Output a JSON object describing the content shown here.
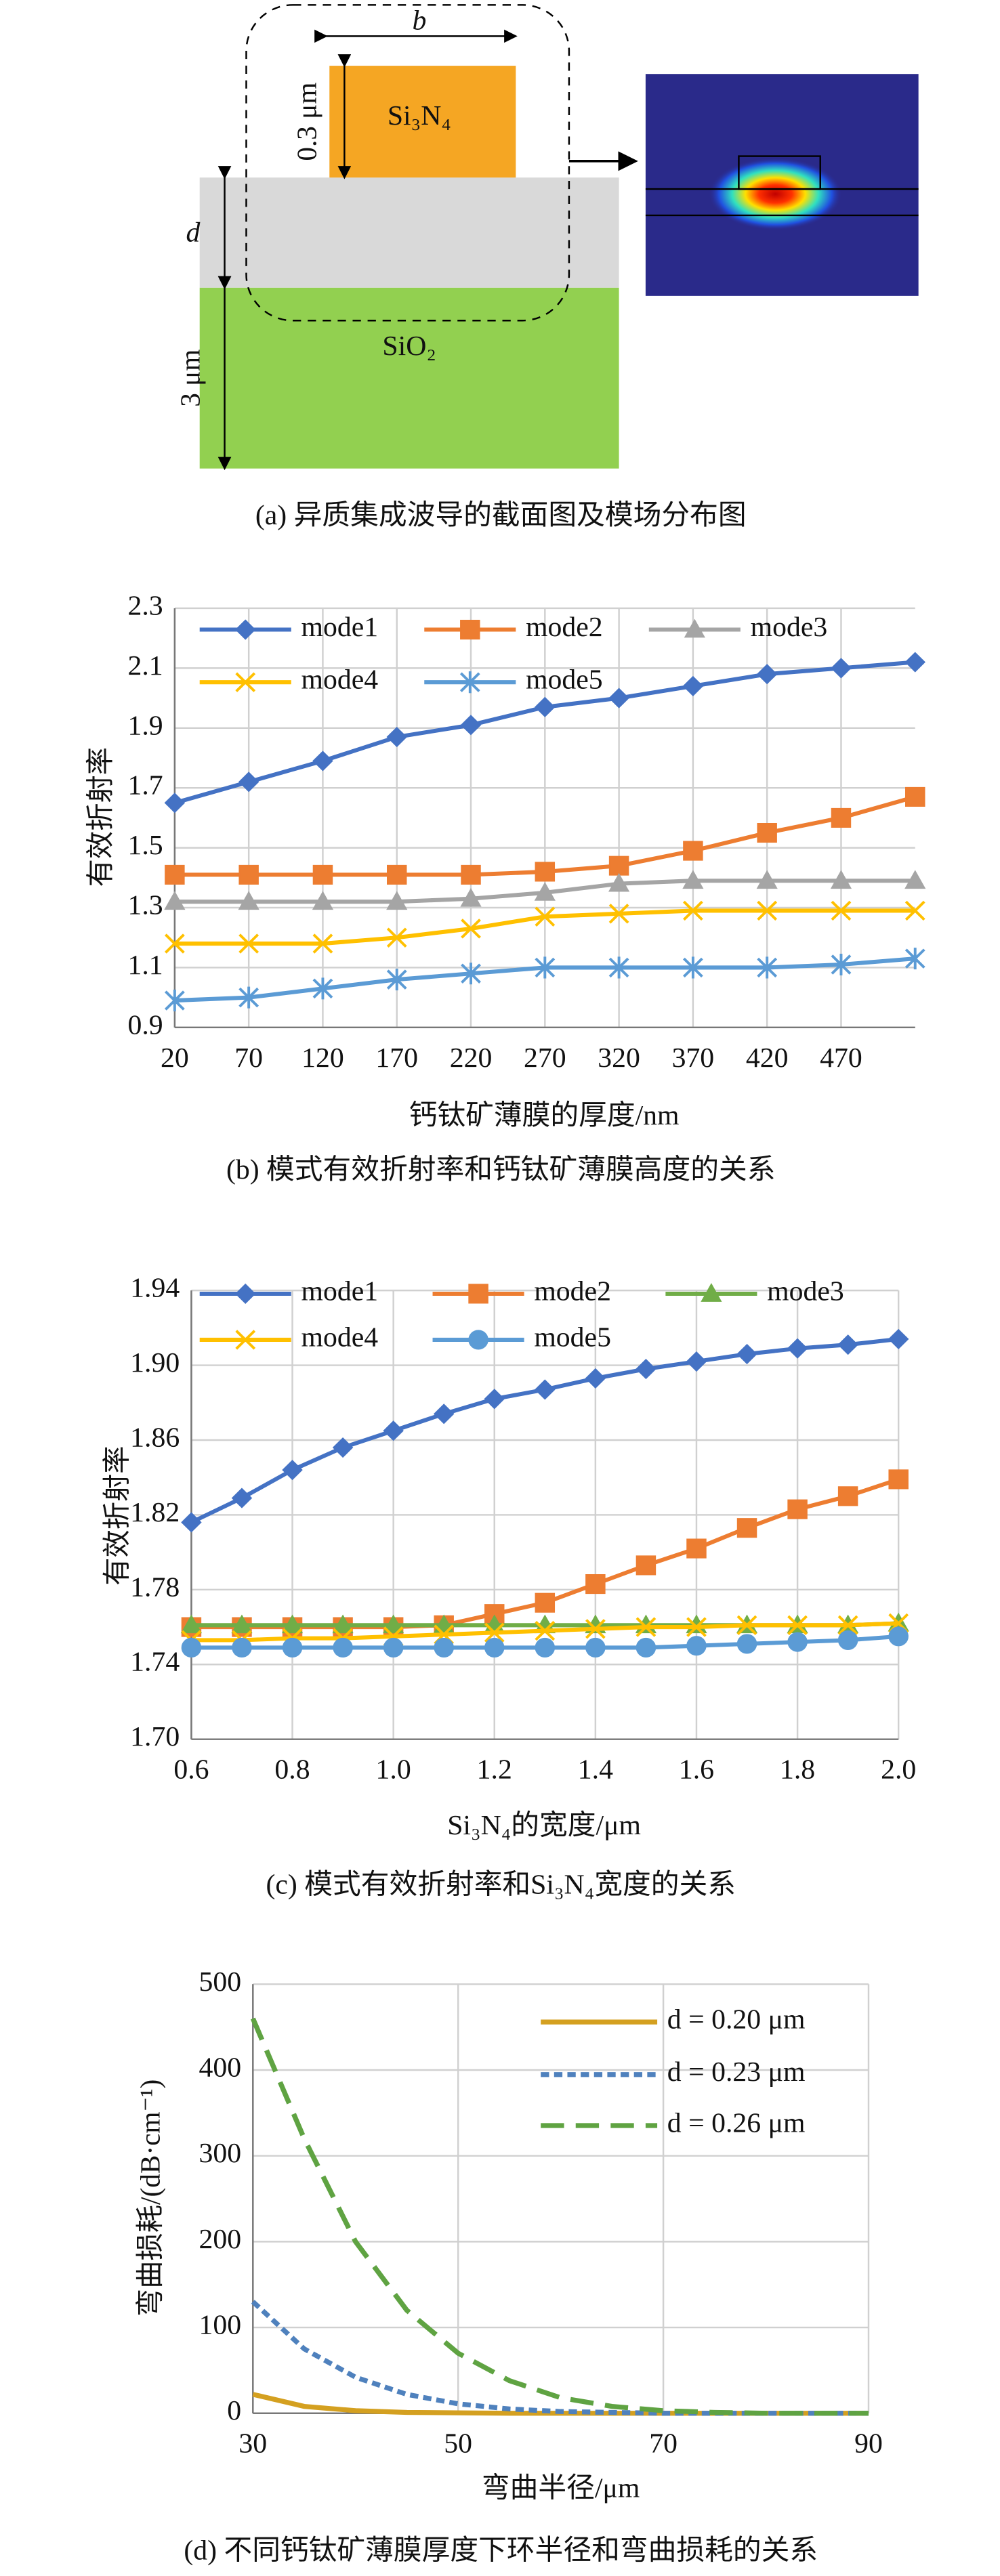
{
  "diagram": {
    "width_label": "b",
    "height_label": "0.3 μm",
    "core_label": "Si₃N₄",
    "film_label": "d",
    "substrate_height_label": "3 μm",
    "substrate_label": "SiO₂",
    "caption": "(a) 异质集成波导的截面图及模场分布图"
  },
  "chart_data": [
    {
      "type": "line",
      "caption": "(b) 模式有效折射率和钙钛矿薄膜高度的关系",
      "xlabel": "钙钛矿薄膜的厚度/nm",
      "ylabel": "有效折射率",
      "x": [
        20,
        70,
        120,
        170,
        220,
        270,
        320,
        370,
        420,
        470,
        520
      ],
      "xlim": [
        20,
        520
      ],
      "xticks": [
        20,
        70,
        120,
        170,
        220,
        270,
        320,
        370,
        420,
        470
      ],
      "ylim": [
        0.9,
        2.3
      ],
      "yticks": [
        0.9,
        1.1,
        1.3,
        1.5,
        1.7,
        1.9,
        2.1,
        2.3
      ],
      "grid": true,
      "series": [
        {
          "name": "mode1",
          "color": "#4472c4",
          "marker": "diamond",
          "values": [
            1.65,
            1.72,
            1.79,
            1.87,
            1.91,
            1.97,
            2.0,
            2.04,
            2.08,
            2.1,
            2.12
          ]
        },
        {
          "name": "mode2",
          "color": "#ed7d31",
          "marker": "square",
          "values": [
            1.41,
            1.41,
            1.41,
            1.41,
            1.41,
            1.42,
            1.44,
            1.49,
            1.55,
            1.6,
            1.67
          ]
        },
        {
          "name": "mode3",
          "color": "#a5a5a5",
          "marker": "triangle",
          "values": [
            1.32,
            1.32,
            1.32,
            1.32,
            1.33,
            1.35,
            1.38,
            1.39,
            1.39,
            1.39,
            1.39
          ]
        },
        {
          "name": "mode4",
          "color": "#ffc000",
          "marker": "x",
          "values": [
            1.18,
            1.18,
            1.18,
            1.2,
            1.23,
            1.27,
            1.28,
            1.29,
            1.29,
            1.29,
            1.29
          ]
        },
        {
          "name": "mode5",
          "color": "#5b9bd5",
          "marker": "star",
          "values": [
            0.99,
            1.0,
            1.03,
            1.06,
            1.08,
            1.1,
            1.1,
            1.1,
            1.1,
            1.11,
            1.13
          ]
        }
      ]
    },
    {
      "type": "line",
      "caption": "(c) 模式有效折射率和Si₃N₄宽度的关系",
      "xlabel": "Si₃N₄的宽度/μm",
      "ylabel": "有效折射率",
      "x": [
        0.6,
        0.7,
        0.8,
        0.9,
        1.0,
        1.1,
        1.2,
        1.3,
        1.4,
        1.5,
        1.6,
        1.7,
        1.8,
        1.9,
        2.0
      ],
      "xlim": [
        0.6,
        2.0
      ],
      "xticks": [
        0.6,
        0.8,
        {
          "value": 1,
          "label": "1.0"
        },
        1.2,
        1.4,
        1.6,
        1.8,
        {
          "value": 2,
          "label": "2.0"
        }
      ],
      "ylim": [
        1.7,
        1.94
      ],
      "yticks": [
        {
          "value": 1.7,
          "label": "1.70"
        },
        1.74,
        1.78,
        1.82,
        1.86,
        {
          "value": 1.9,
          "label": "1.90"
        },
        1.94
      ],
      "grid": true,
      "series": [
        {
          "name": "mode1",
          "color": "#4472c4",
          "marker": "diamond",
          "values": [
            1.816,
            1.829,
            1.844,
            1.856,
            1.865,
            1.874,
            1.882,
            1.887,
            1.893,
            1.898,
            1.902,
            1.906,
            1.909,
            1.911,
            1.914
          ]
        },
        {
          "name": "mode2",
          "color": "#ed7d31",
          "marker": "square",
          "values": [
            1.76,
            1.76,
            1.76,
            1.76,
            1.76,
            1.761,
            1.767,
            1.773,
            1.783,
            1.793,
            1.802,
            1.813,
            1.823,
            1.83,
            1.839
          ]
        },
        {
          "name": "mode3",
          "color": "#70ad47",
          "marker": "triangle",
          "values": [
            1.761,
            1.761,
            1.761,
            1.761,
            1.761,
            1.761,
            1.761,
            1.761,
            1.761,
            1.761,
            1.761,
            1.761,
            1.761,
            1.761,
            1.762
          ]
        },
        {
          "name": "mode4",
          "color": "#ffc000",
          "marker": "x",
          "values": [
            1.753,
            1.753,
            1.754,
            1.754,
            1.755,
            1.756,
            1.757,
            1.758,
            1.759,
            1.76,
            1.76,
            1.761,
            1.761,
            1.761,
            1.762
          ]
        },
        {
          "name": "mode5",
          "color": "#5b9bd5",
          "marker": "circle",
          "values": [
            1.749,
            1.749,
            1.749,
            1.749,
            1.749,
            1.749,
            1.749,
            1.749,
            1.749,
            1.749,
            1.75,
            1.751,
            1.752,
            1.753,
            1.755
          ]
        }
      ]
    },
    {
      "type": "line",
      "caption": "(d) 不同钙钛矿薄膜厚度下环半径和弯曲损耗的关系",
      "xlabel": "弯曲半径/μm",
      "ylabel": "弯曲损耗/(dB·cm⁻¹)",
      "x": [
        30,
        35,
        40,
        45,
        50,
        55,
        60,
        65,
        70,
        75,
        80,
        85,
        90
      ],
      "xlim": [
        30,
        90
      ],
      "xticks": [
        30,
        50,
        70,
        90
      ],
      "ylim": [
        0,
        500
      ],
      "yticks": [
        0,
        100,
        200,
        300,
        400,
        500
      ],
      "grid": true,
      "series": [
        {
          "name": "d = 0.20 μm",
          "color": "#d4a020",
          "dash": "solid",
          "values": [
            22,
            8,
            3,
            1,
            0.5,
            0,
            0,
            0,
            0,
            0,
            0,
            0,
            0
          ]
        },
        {
          "name": "d = 0.23 μm",
          "color": "#4f81bd",
          "dash": "dotted",
          "values": [
            130,
            75,
            42,
            22,
            11,
            5,
            2,
            1,
            0,
            0,
            0,
            0,
            0
          ]
        },
        {
          "name": "d = 0.26 μm",
          "color": "#5fa342",
          "dash": "dashed",
          "values": [
            460,
            320,
            200,
            120,
            70,
            38,
            18,
            8,
            3,
            1,
            0,
            0,
            0
          ]
        }
      ]
    }
  ]
}
